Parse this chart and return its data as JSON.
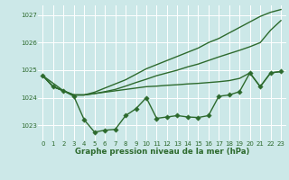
{
  "bg_color": "#cce8e8",
  "grid_color": "#ffffff",
  "line_color": "#2d6a2d",
  "xlabel_label": "Graphe pression niveau de la mer (hPa)",
  "ylim": [
    1022.45,
    1027.35
  ],
  "xlim": [
    -0.5,
    23.5
  ],
  "yticks": [
    1023,
    1024,
    1025,
    1026,
    1027
  ],
  "xticks": [
    0,
    1,
    2,
    3,
    4,
    5,
    6,
    7,
    8,
    9,
    10,
    11,
    12,
    13,
    14,
    15,
    16,
    17,
    18,
    19,
    20,
    21,
    22,
    23
  ],
  "series": [
    {
      "x": [
        0,
        1,
        2,
        3,
        4,
        5,
        6,
        7,
        8,
        9,
        10,
        11,
        12,
        13,
        14,
        15,
        16,
        17,
        18,
        19,
        20,
        21,
        22,
        23
      ],
      "y": [
        1024.8,
        1024.4,
        1024.25,
        1024.1,
        1024.1,
        1024.2,
        1024.35,
        1024.5,
        1024.65,
        1024.85,
        1025.05,
        1025.2,
        1025.35,
        1025.5,
        1025.65,
        1025.8,
        1026.0,
        1026.15,
        1026.35,
        1026.55,
        1026.75,
        1026.95,
        1027.1,
        1027.2
      ],
      "marker": null,
      "linewidth": 1.0
    },
    {
      "x": [
        0,
        1,
        2,
        3,
        4,
        5,
        6,
        7,
        8,
        9,
        10,
        11,
        12,
        13,
        14,
        15,
        16,
        17,
        18,
        19,
        20,
        21,
        22,
        23
      ],
      "y": [
        1024.8,
        1024.4,
        1024.25,
        1024.1,
        1024.1,
        1024.15,
        1024.22,
        1024.3,
        1024.42,
        1024.55,
        1024.67,
        1024.8,
        1024.9,
        1025.0,
        1025.12,
        1025.22,
        1025.35,
        1025.48,
        1025.6,
        1025.72,
        1025.85,
        1026.0,
        1026.45,
        1026.8
      ],
      "marker": null,
      "linewidth": 1.0
    },
    {
      "x": [
        0,
        2,
        3,
        4,
        10,
        11,
        12,
        13,
        14,
        15,
        16,
        17,
        18,
        19,
        20,
        21,
        22,
        23
      ],
      "y": [
        1024.8,
        1024.25,
        1024.1,
        1024.1,
        1024.4,
        1024.42,
        1024.45,
        1024.47,
        1024.5,
        1024.52,
        1024.55,
        1024.58,
        1024.62,
        1024.7,
        1024.9,
        1024.4,
        1024.9,
        1024.95
      ],
      "marker": null,
      "linewidth": 1.0
    },
    {
      "x": [
        0,
        1,
        2,
        3,
        4,
        5,
        6,
        7,
        8,
        9,
        10,
        11,
        12,
        13,
        14,
        15,
        16,
        17,
        18,
        19,
        20,
        21,
        22,
        23
      ],
      "y": [
        1024.8,
        1024.4,
        1024.25,
        1024.05,
        1023.2,
        1022.75,
        1022.82,
        1022.85,
        1023.35,
        1023.6,
        1024.0,
        1023.25,
        1023.3,
        1023.35,
        1023.3,
        1023.28,
        1023.35,
        1024.05,
        1024.1,
        1024.22,
        1024.9,
        1024.4,
        1024.9,
        1024.95
      ],
      "marker": "D",
      "linewidth": 1.0
    }
  ]
}
